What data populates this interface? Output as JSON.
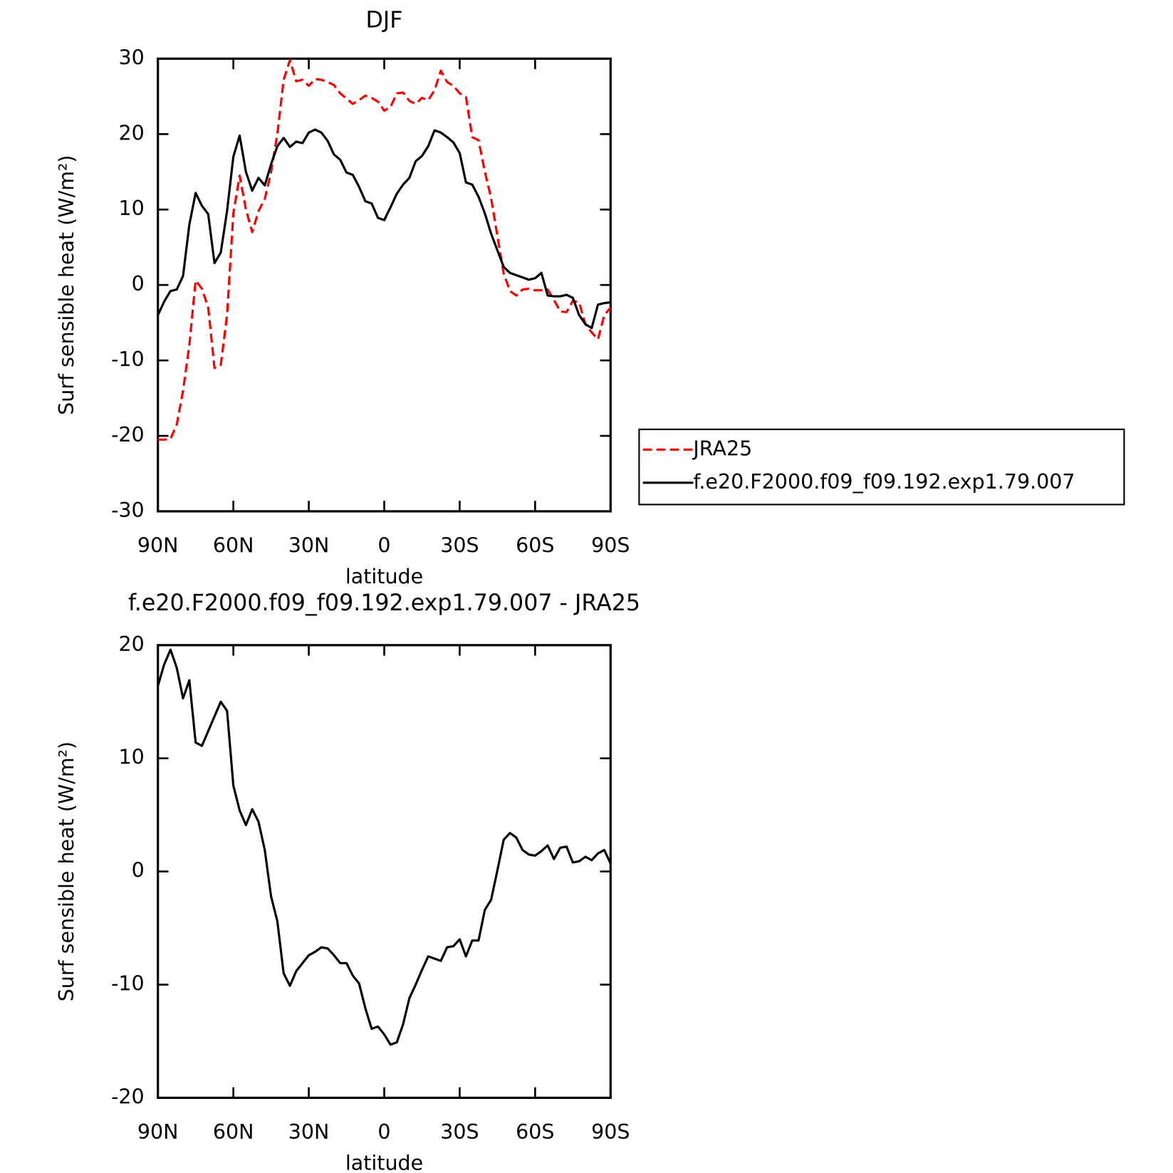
{
  "chart_data": [
    {
      "type": "line",
      "title": "DJF",
      "x_label": "latitude",
      "y_label": "Surf sensible heat (W/m²)",
      "x": [
        90,
        87.5,
        85,
        82.5,
        80,
        77.5,
        75,
        72.5,
        70,
        67.5,
        65,
        62.5,
        60,
        57.5,
        55,
        52.5,
        50,
        47.5,
        45,
        42.5,
        40,
        37.5,
        35,
        32.5,
        30,
        27.5,
        25,
        22.5,
        20,
        17.5,
        15,
        12.5,
        10,
        7.5,
        5,
        2.5,
        0,
        -2.5,
        -5,
        -7.5,
        -10,
        -12.5,
        -15,
        -17.5,
        -20,
        -22.5,
        -25,
        -27.5,
        -30,
        -32.5,
        -35,
        -37.5,
        -40,
        -42.5,
        -45,
        -47.5,
        -50,
        -52.5,
        -55,
        -57.5,
        -60,
        -62.5,
        -65,
        -67.5,
        -70,
        -72.5,
        -75,
        -77.5,
        -80,
        -82.5,
        -85,
        -87.5,
        -90
      ],
      "xlim": [
        90,
        -90
      ],
      "xticks": [
        {
          "value": 90,
          "label": "90N"
        },
        {
          "value": 60,
          "label": "60N"
        },
        {
          "value": 30,
          "label": "30N"
        },
        0,
        {
          "value": -30,
          "label": "30S"
        },
        {
          "value": -60,
          "label": "60S"
        },
        {
          "value": -90,
          "label": "90S"
        }
      ],
      "ylim": [
        -30,
        30
      ],
      "yticks": [
        -30,
        -20,
        -10,
        0,
        10,
        20,
        30
      ],
      "legend": "right",
      "series": [
        {
          "name": "JRA25",
          "color": "#ff0000",
          "dash": true,
          "values": [
            -20.5,
            -20.5,
            -20.4,
            -18.5,
            -14,
            -8,
            0.6,
            -0.5,
            -3,
            -11,
            -10.6,
            -4,
            9.5,
            14.5,
            10,
            7,
            9.8,
            11.4,
            15,
            20,
            27.2,
            29.8,
            27,
            27.2,
            26.4,
            27.3,
            27.2,
            26.9,
            26.5,
            25.4,
            24.7,
            24,
            24.5,
            25.1,
            24.8,
            24.3,
            23.1,
            23.6,
            25.4,
            25.5,
            24.4,
            24,
            24.8,
            24.5,
            25.8,
            28.4,
            26.9,
            26.4,
            25.4,
            24.9,
            19.6,
            19.2,
            15,
            11.5,
            6.5,
            1.5,
            -0.8,
            -1.4,
            -0.6,
            -0.5,
            -0.7,
            -0.7,
            -0.6,
            -2,
            -3.5,
            -3.6,
            -2.1,
            -2.3,
            -5.2,
            -6.3,
            -7.2,
            -4,
            -3
          ]
        },
        {
          "name": "f.e20.F2000.f09_f09.192.exp1.79.007",
          "color": "#000000",
          "dash": false,
          "values": [
            -4,
            -2.2,
            -0.8,
            -0.6,
            1.2,
            8,
            12.2,
            10.5,
            9.4,
            2.9,
            4.3,
            9.8,
            17,
            19.8,
            15,
            12.5,
            14.2,
            13.2,
            16,
            18.4,
            19.5,
            18.3,
            19,
            18.8,
            20.2,
            20.6,
            20.2,
            19.1,
            17.3,
            16.6,
            14.9,
            14.6,
            13,
            11.1,
            10.8,
            8.9,
            8.6,
            10.3,
            12.1,
            13.3,
            14.2,
            16.4,
            17.1,
            18.4,
            20.5,
            20.2,
            19.6,
            18.9,
            17.5,
            13.6,
            13.3,
            11.7,
            9.5,
            6.8,
            4.6,
            2.4,
            1.6,
            1.3,
            1,
            0.7,
            0.9,
            1.6,
            -1.4,
            -1.5,
            -1.5,
            -1.3,
            -1.7,
            -4,
            -5.2,
            -5.7,
            -2.6,
            -2.4,
            -2.3
          ]
        }
      ]
    },
    {
      "type": "line",
      "title": "f.e20.F2000.f09_f09.192.exp1.79.007 - JRA25",
      "x_label": "latitude",
      "y_label": "Surf sensible heat (W/m²)",
      "x": [
        90,
        87.5,
        85,
        82.5,
        80,
        77.5,
        75,
        72.5,
        70,
        67.5,
        65,
        62.5,
        60,
        57.5,
        55,
        52.5,
        50,
        47.5,
        45,
        42.5,
        40,
        37.5,
        35,
        32.5,
        30,
        27.5,
        25,
        22.5,
        20,
        17.5,
        15,
        12.5,
        10,
        7.5,
        5,
        2.5,
        0,
        -2.5,
        -5,
        -7.5,
        -10,
        -12.5,
        -15,
        -17.5,
        -20,
        -22.5,
        -25,
        -27.5,
        -30,
        -32.5,
        -35,
        -37.5,
        -40,
        -42.5,
        -45,
        -47.5,
        -50,
        -52.5,
        -55,
        -57.5,
        -60,
        -62.5,
        -65,
        -67.5,
        -70,
        -72.5,
        -75,
        -77.5,
        -80,
        -82.5,
        -85,
        -87.5,
        -90
      ],
      "xlim": [
        90,
        -90
      ],
      "xticks": [
        {
          "value": 90,
          "label": "90N"
        },
        {
          "value": 60,
          "label": "60N"
        },
        {
          "value": 30,
          "label": "30N"
        },
        0,
        {
          "value": -30,
          "label": "30S"
        },
        {
          "value": -60,
          "label": "60S"
        },
        {
          "value": -90,
          "label": "90S"
        }
      ],
      "ylim": [
        -20,
        20
      ],
      "yticks": [
        -20,
        -10,
        0,
        10,
        20
      ],
      "color": "#000000",
      "values": [
        16.4,
        18.3,
        19.6,
        18,
        15.3,
        16.9,
        11.4,
        11.1,
        12.4,
        13.7,
        15,
        14.2,
        7.6,
        5.4,
        4.1,
        5.5,
        4.4,
        1.9,
        -2.2,
        -4.4,
        -9,
        -10.1,
        -8.8,
        -8.1,
        -7.4,
        -7.1,
        -6.7,
        -6.8,
        -7.4,
        -8.1,
        -8.1,
        -9.2,
        -9.9,
        -12.1,
        -13.9,
        -13.7,
        -14.4,
        -15.3,
        -15.1,
        -13.5,
        -11.2,
        -10,
        -8.7,
        -7.5,
        -7.7,
        -7.9,
        -6.7,
        -6.6,
        -6,
        -7.5,
        -6.1,
        -6.1,
        -3.4,
        -2.5,
        0.1,
        2.8,
        3.4,
        3,
        1.9,
        1.5,
        1.4,
        1.8,
        2.3,
        1.1,
        2.1,
        2.2,
        0.8,
        0.9,
        1.3,
        1,
        1.6,
        1.9,
        0.7
      ]
    }
  ]
}
